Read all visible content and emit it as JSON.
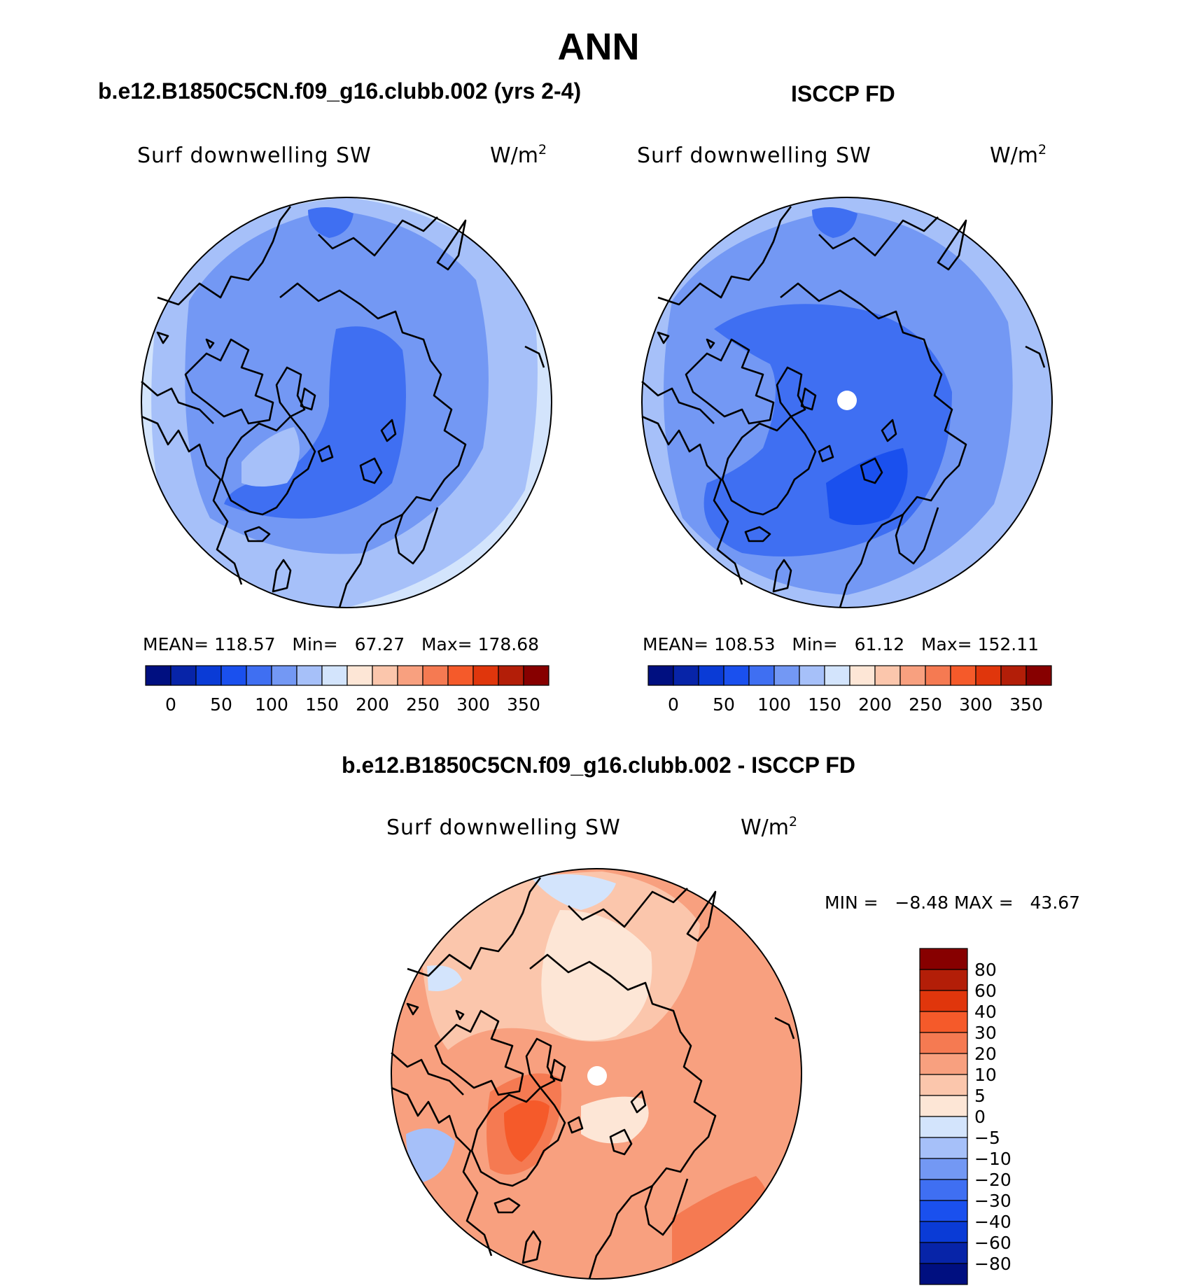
{
  "page_title": "ANN",
  "chart_data": [
    {
      "type": "heatmap",
      "projection": "north polar stereographic",
      "panel_title": "b.e12.B1850C5CN.f09_g16.clubb.002 (yrs 2-4)",
      "field_label": "Surf downwelling SW",
      "units": "W/m",
      "units_exponent": "2",
      "stats": {
        "mean_label": "MEAN=",
        "mean": "118.57",
        "min_label": "Min=",
        "min": "67.27",
        "max_label": "Max=",
        "max": "178.68"
      },
      "colorbar": {
        "orientation": "horizontal",
        "tick_labels": [
          "0",
          "50",
          "100",
          "150",
          "200",
          "250",
          "300",
          "350"
        ],
        "colors": [
          "#000f80",
          "#0724a8",
          "#0a3bd6",
          "#1a50ee",
          "#3f6ff2",
          "#7398f4",
          "#a6c0f9",
          "#d3e4fc",
          "#fde6d6",
          "#fbc6ac",
          "#f8a07f",
          "#f57a52",
          "#f55a2a",
          "#e0360c",
          "#b31e08",
          "#870000"
        ]
      },
      "field_levels_shown": [
        "75-100",
        "100-125",
        "125-150",
        "150-175"
      ]
    },
    {
      "type": "heatmap",
      "projection": "north polar stereographic",
      "panel_title": "ISCCP FD",
      "field_label": "Surf downwelling SW",
      "units": "W/m",
      "units_exponent": "2",
      "stats": {
        "mean_label": "MEAN=",
        "mean": "108.53",
        "min_label": "Min=",
        "min": "61.12",
        "max_label": "Max=",
        "max": "152.11"
      },
      "colorbar": {
        "orientation": "horizontal",
        "tick_labels": [
          "0",
          "50",
          "100",
          "150",
          "200",
          "250",
          "300",
          "350"
        ],
        "colors": [
          "#000f80",
          "#0724a8",
          "#0a3bd6",
          "#1a50ee",
          "#3f6ff2",
          "#7398f4",
          "#a6c0f9",
          "#d3e4fc",
          "#fde6d6",
          "#fbc6ac",
          "#f8a07f",
          "#f57a52",
          "#f55a2a",
          "#e0360c",
          "#b31e08",
          "#870000"
        ]
      },
      "field_levels_shown": [
        "50-75",
        "75-100",
        "100-125",
        "125-150"
      ]
    },
    {
      "type": "heatmap",
      "projection": "north polar stereographic",
      "panel_title": "b.e12.B1850C5CN.f09_g16.clubb.002 - ISCCP FD",
      "field_label": "Surf downwelling SW",
      "units": "W/m",
      "units_exponent": "2",
      "stats": {
        "min_label": "MIN =",
        "min": "−8.48",
        "max_label": "MAX =",
        "max": "43.67"
      },
      "colorbar": {
        "orientation": "vertical",
        "tick_labels": [
          "80",
          "60",
          "40",
          "30",
          "20",
          "10",
          "5",
          "0",
          "−5",
          "−10",
          "−20",
          "−30",
          "−40",
          "−60",
          "−80"
        ],
        "colors": [
          "#870000",
          "#b31e08",
          "#e0360c",
          "#f55a2a",
          "#f57a52",
          "#f8a07f",
          "#fbc6ac",
          "#fde6d6",
          "#d3e4fc",
          "#a6c0f9",
          "#7398f4",
          "#3f6ff2",
          "#1a50ee",
          "#0a3bd6",
          "#0724a8",
          "#000f80"
        ]
      },
      "field_levels_shown": [
        "-10 to -5",
        "-5 to 0",
        "0 to 5",
        "5 to 10",
        "10 to 20",
        "20 to 30",
        "30 to 40"
      ]
    }
  ]
}
